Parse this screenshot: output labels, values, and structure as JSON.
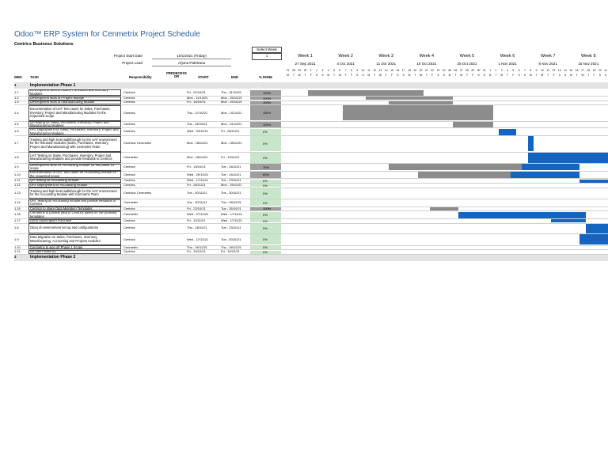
{
  "title": "Odoo™ ERP System for Cenmetrix Project Schedule",
  "company": "Centrics Business Solutions",
  "project_start_label": "Project Start Date",
  "project_start_value": "10/1/2021 (Friday)",
  "project_lead_label": "Project Lead",
  "project_lead_value": "Arjuna Pathirana",
  "select_week_label": "Select Week",
  "select_week_value": "1",
  "columns": {
    "wbs": "WBS",
    "task": "TASK",
    "responsibility": "Responsibility",
    "predecessor": "PREDECESS OR",
    "start": "START",
    "end": "END",
    "done": "% DONE"
  },
  "weeks": [
    {
      "title": "Week 1",
      "date": "27 Sep 2021",
      "days": [
        "27",
        "28",
        "29",
        "30",
        "1",
        "2",
        "3"
      ]
    },
    {
      "title": "Week 2",
      "date": "4 Oct 2021",
      "days": [
        "4",
        "5",
        "6",
        "7",
        "8",
        "9",
        "10"
      ]
    },
    {
      "title": "Week 3",
      "date": "11 Oct 2021",
      "days": [
        "11",
        "12",
        "13",
        "14",
        "15",
        "16",
        "17"
      ]
    },
    {
      "title": "Week 4",
      "date": "18 Oct 2021",
      "days": [
        "18",
        "19",
        "20",
        "21",
        "22",
        "23",
        "24"
      ]
    },
    {
      "title": "Week 5",
      "date": "25 Oct 2021",
      "days": [
        "25",
        "26",
        "27",
        "28",
        "29",
        "30",
        "31"
      ]
    },
    {
      "title": "Week 6",
      "date": "1 Nov 2021",
      "days": [
        "1",
        "2",
        "3",
        "4",
        "5",
        "6",
        "7"
      ]
    },
    {
      "title": "Week 7",
      "date": "8 Nov 2021",
      "days": [
        "8",
        "9",
        "10",
        "11",
        "12",
        "13",
        "14"
      ]
    },
    {
      "title": "Week 8",
      "date": "15 Nov 2021",
      "days": [
        "15",
        "16",
        "17",
        "18",
        "19",
        "20",
        "21"
      ]
    }
  ],
  "day_letters": [
    "M",
    "T",
    "W",
    "T",
    "F",
    "S",
    "S"
  ],
  "phases": [
    {
      "wbs": "1",
      "name": "Implementation Phase 1",
      "end": "-"
    },
    {
      "wbs": "2",
      "name": "Implementation Phase 2",
      "end": "-"
    }
  ],
  "tasks": [
    {
      "wbs": "1.1",
      "task": "Development work on Sales, Purchases and Inventory Modules",
      "resp": "Centrics",
      "start": "Fri - 01/10/21",
      "end": "Thu - 21/10/21",
      "done": "100%",
      "status": "done",
      "bars": [
        {
          "type": "grey",
          "start": 4,
          "end": 24
        }
      ]
    },
    {
      "wbs": "1.2",
      "task": "Development work on Project Module",
      "resp": "Centrics",
      "start": "Mon - 11/10/21",
      "end": "Mon - 25/10/21",
      "done": "100%",
      "status": "done",
      "bars": [
        {
          "type": "grey",
          "start": 14,
          "end": 29
        }
      ]
    },
    {
      "wbs": "1.3",
      "task": "Development work on Manufacturing Module",
      "resp": "Centrics",
      "start": "Fri - 15/10/21",
      "end": "Mon - 25/10/21",
      "done": "100%",
      "status": "done",
      "bars": [
        {
          "type": "grey",
          "start": 18,
          "end": 29
        }
      ]
    },
    {
      "wbs": "1.4",
      "task": "Documentation of UAT Test cases for Sales, Purchases, Inventory, Project and Manufacturing Modules for the requested scope",
      "resp": "Centrics",
      "start": "Thu - 07/10/21",
      "end": "Mon - 01/11/21",
      "done": "100%",
      "status": "done",
      "bars": [
        {
          "type": "grey",
          "start": 10,
          "end": 36
        }
      ]
    },
    {
      "wbs": "1.5",
      "task": "QA testing for Sales, Purchases, Inventory, Project and Manufacturing Modules",
      "resp": "Centrics",
      "start": "Tue - 26/10/21",
      "end": "Mon - 01/11/21",
      "done": "100%",
      "status": "done",
      "bars": [
        {
          "type": "grey",
          "start": 29,
          "end": 36
        }
      ]
    },
    {
      "wbs": "1.6",
      "task": "UAT Deployment for Sales, Purchases, Inventory, Project and Manufacturing Modules",
      "resp": "Centrics",
      "start": "Wed - 03/11/21",
      "end": "Fri - 05/11/21",
      "done": "0%",
      "status": "todo",
      "bars": [
        {
          "type": "blue",
          "start": 37,
          "end": 40
        }
      ]
    },
    {
      "wbs": "1.7",
      "task": "Training and high level walkthrough for the UAT environment for the released modules (Sales, Purchases, Inventory, Project and Manufacturing) with Cenmetrix Team",
      "resp": "Centrics/ Cenmetrix",
      "start": "Mon - 08/11/21",
      "end": "Mon - 08/11/21",
      "done": "0%",
      "status": "todo",
      "bars": [
        {
          "type": "blue",
          "start": 42,
          "end": 43
        }
      ]
    },
    {
      "wbs": "1.8",
      "task": "UAT Testing on Sales, Purchases, Inventory, Project and Manufacturing Modules and provide feedback to Centrics",
      "resp": "Cenmetrix",
      "start": "Mon - 08/11/21",
      "end": "Fri - 19/11/21",
      "done": "0%",
      "status": "todo",
      "bars": [
        {
          "type": "blue",
          "start": 42,
          "end": 56
        }
      ]
    },
    {
      "wbs": "1.9",
      "task": "Development work for Accounting module for the phase 01 scope",
      "resp": "Centrics",
      "start": "Fri - 15/10/21",
      "end": "Tue - 16/11/21",
      "done": "70%",
      "status": "part",
      "bars": [
        {
          "type": "grey",
          "start": 18,
          "end": 41
        },
        {
          "type": "blue",
          "start": 41,
          "end": 51
        }
      ]
    },
    {
      "wbs": "1.10",
      "task": "Documentation of UAT Test cases for Accounting module for the requested scope",
      "resp": "Centrics",
      "start": "Wed - 20/10/21",
      "end": "Tue - 16/11/21",
      "done": "60%",
      "status": "part",
      "bars": [
        {
          "type": "grey",
          "start": 23,
          "end": 39
        },
        {
          "type": "blue",
          "start": 39,
          "end": 51
        }
      ]
    },
    {
      "wbs": "1.11",
      "task": "QA Testing for Accounting module",
      "resp": "Centrics",
      "start": "Wed - 17/11/21",
      "end": "Tue - 23/11/21",
      "done": "0%",
      "status": "todo",
      "bars": [
        {
          "type": "blue",
          "start": 51,
          "end": 56
        }
      ]
    },
    {
      "wbs": "1.12",
      "task": "UAT Deployment for Accounting module",
      "resp": "Centrics",
      "start": "Fri - 26/11/21",
      "end": "Mon - 29/11/21",
      "done": "0%",
      "status": "todo",
      "bars": []
    },
    {
      "wbs": "1.13",
      "task": "Training and high level walkthrough for the UAT environment for the Accounting Module with Cenmetrix Team",
      "resp": "Centrics/ Cenmetrix",
      "start": "Tue - 30/11/21",
      "end": "Tue - 30/11/21",
      "done": "0%",
      "status": "todo",
      "bars": []
    },
    {
      "wbs": "1.14",
      "task": "UAT Testing on Accounting module and provide feedback to Centrics",
      "resp": "Cenmetrix",
      "start": "Tue - 30/11/21",
      "end": "Thu - 09/12/21",
      "done": "0%",
      "status": "todo",
      "bars": []
    },
    {
      "wbs": "1.15",
      "task": "Centrics to share Data Migration Templates",
      "resp": "Centrics",
      "start": "Fri - 22/10/21",
      "end": "Tue - 26/10/21",
      "done": "100%",
      "status": "done",
      "bars": [
        {
          "type": "grey",
          "start": 25,
          "end": 30
        }
      ]
    },
    {
      "wbs": "1.16",
      "task": "Cenmetrix to provide data to Centrics based on the provided templates",
      "resp": "Cenmetrix",
      "start": "Wed - 27/10/21",
      "end": "Wed - 17/11/21",
      "done": "0%",
      "status": "todo",
      "bars": [
        {
          "type": "blue",
          "start": 30,
          "end": 52
        }
      ]
    },
    {
      "wbs": "1.17",
      "task": "Odoo Subscription Purchase",
      "resp": "Centrics",
      "start": "Fri - 12/11/21",
      "end": "Wed - 17/11/21",
      "done": "0%",
      "status": "todo",
      "bars": [
        {
          "type": "blue",
          "start": 46,
          "end": 52
        }
      ]
    },
    {
      "wbs": "1.8",
      "task": "Odoo sh environment set up and configurations",
      "resp": "Centrics",
      "start": "Thu - 18/11/21",
      "end": "Tue - 23/11/21",
      "done": "0%",
      "status": "todo",
      "bars": [
        {
          "type": "blue",
          "start": 52,
          "end": 56
        }
      ]
    },
    {
      "wbs": "1.9",
      "task": "Data Migration on Sales, Purchases, Inventory, Manufacturing, Accounting and Projects modules",
      "resp": "Centrics",
      "start": "Wed - 17/11/21",
      "end": "Tue - 30/11/21",
      "done": "0%",
      "status": "todo",
      "bars": [
        {
          "type": "blue",
          "start": 51,
          "end": 56
        }
      ]
    },
    {
      "wbs": "1.10",
      "task": "Cenmetrix to sign off Phase 1 Scope",
      "resp": "Cenmetrix",
      "start": "Thu - 09/12/21",
      "end": "Thu - 09/12/21",
      "done": "0%",
      "status": "todo",
      "bars": []
    },
    {
      "wbs": "1.11",
      "task": "Go Live Phase 01",
      "resp": "Centrics",
      "start": "Fri - 10/12/21",
      "end": "Fri - 10/12/21",
      "done": "0%",
      "status": "todo",
      "bars": []
    }
  ],
  "colors": {
    "grey_bar": "#8c8c8c",
    "blue_bar": "#1565c0",
    "done_cell": "#9e9e9e",
    "todo_cell": "#c8e6c9",
    "title": "#2e5c9a"
  }
}
